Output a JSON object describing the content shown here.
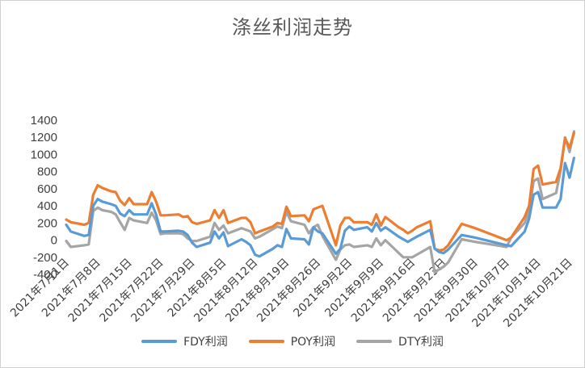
{
  "chart_data": {
    "type": "line",
    "title": "涤丝利润走势",
    "ylim": [
      -400,
      1400
    ],
    "yticks": [
      -400,
      -200,
      0,
      200,
      400,
      600,
      800,
      1000,
      1200,
      1400
    ],
    "x_tick_labels": [
      "2021年7月1日",
      "2021年7月8日",
      "2021年7月15日",
      "2021年7月22日",
      "2021年7月29日",
      "2021年8月5日",
      "2021年8月12日",
      "2021年8月19日",
      "2021年8月26日",
      "2021年9月2日",
      "2021年9月9日",
      "2021年9月16日",
      "2021年9月23日",
      "2021年9月30日",
      "2021年10月7日",
      "2021年10月14日",
      "2021年10月21日"
    ],
    "x_tick_days": [
      0,
      7,
      14,
      21,
      28,
      35,
      42,
      49,
      56,
      63,
      70,
      77,
      84,
      91,
      98,
      105,
      112
    ],
    "x_range_days": [
      0,
      114
    ],
    "grid": false,
    "legend_position": "bottom",
    "series": [
      {
        "name": "FDY利润",
        "color": "#5B9BD5",
        "points": [
          [
            0,
            180
          ],
          [
            1,
            100
          ],
          [
            4,
            50
          ],
          [
            5,
            60
          ],
          [
            6,
            400
          ],
          [
            7,
            480
          ],
          [
            8,
            450
          ],
          [
            10,
            420
          ],
          [
            11,
            400
          ],
          [
            12,
            310
          ],
          [
            13,
            280
          ],
          [
            14,
            350
          ],
          [
            15,
            300
          ],
          [
            18,
            300
          ],
          [
            19,
            430
          ],
          [
            20,
            300
          ],
          [
            21,
            100
          ],
          [
            22,
            100
          ],
          [
            25,
            110
          ],
          [
            26,
            100
          ],
          [
            27,
            60
          ],
          [
            28,
            -30
          ],
          [
            29,
            -80
          ],
          [
            32,
            -30
          ],
          [
            33,
            100
          ],
          [
            34,
            20
          ],
          [
            35,
            90
          ],
          [
            36,
            -70
          ],
          [
            39,
            10
          ],
          [
            40,
            -20
          ],
          [
            41,
            -60
          ],
          [
            42,
            -170
          ],
          [
            43,
            -190
          ],
          [
            46,
            -100
          ],
          [
            47,
            -60
          ],
          [
            48,
            -80
          ],
          [
            49,
            130
          ],
          [
            50,
            20
          ],
          [
            53,
            10
          ],
          [
            54,
            -50
          ],
          [
            55,
            150
          ],
          [
            56,
            100
          ],
          [
            57,
            80
          ],
          [
            60,
            -160
          ],
          [
            61,
            -100
          ],
          [
            62,
            110
          ],
          [
            63,
            160
          ],
          [
            64,
            120
          ],
          [
            67,
            150
          ],
          [
            68,
            100
          ],
          [
            69,
            200
          ],
          [
            70,
            110
          ],
          [
            71,
            150
          ],
          [
            74,
            40
          ],
          [
            75,
            10
          ],
          [
            76,
            -20
          ],
          [
            77,
            10
          ],
          [
            78,
            40
          ],
          [
            81,
            120
          ],
          [
            82,
            -100
          ],
          [
            83,
            -140
          ],
          [
            84,
            -150
          ],
          [
            85,
            -110
          ],
          [
            88,
            60
          ],
          [
            91,
            30
          ],
          [
            98,
            -60
          ],
          [
            99,
            -70
          ],
          [
            102,
            100
          ],
          [
            103,
            250
          ],
          [
            104,
            530
          ],
          [
            105,
            560
          ],
          [
            106,
            380
          ],
          [
            109,
            380
          ],
          [
            110,
            480
          ],
          [
            111,
            900
          ],
          [
            112,
            730
          ],
          [
            113,
            960
          ]
        ]
      },
      {
        "name": "POY利润",
        "color": "#ED7D31",
        "points": [
          [
            0,
            240
          ],
          [
            1,
            210
          ],
          [
            4,
            180
          ],
          [
            5,
            200
          ],
          [
            6,
            530
          ],
          [
            7,
            640
          ],
          [
            8,
            610
          ],
          [
            10,
            570
          ],
          [
            11,
            560
          ],
          [
            12,
            460
          ],
          [
            13,
            410
          ],
          [
            14,
            490
          ],
          [
            15,
            420
          ],
          [
            18,
            420
          ],
          [
            19,
            560
          ],
          [
            20,
            450
          ],
          [
            21,
            290
          ],
          [
            22,
            290
          ],
          [
            25,
            300
          ],
          [
            26,
            270
          ],
          [
            27,
            280
          ],
          [
            28,
            210
          ],
          [
            29,
            190
          ],
          [
            32,
            230
          ],
          [
            33,
            350
          ],
          [
            34,
            260
          ],
          [
            35,
            350
          ],
          [
            36,
            200
          ],
          [
            39,
            260
          ],
          [
            40,
            260
          ],
          [
            41,
            210
          ],
          [
            42,
            80
          ],
          [
            43,
            100
          ],
          [
            46,
            160
          ],
          [
            47,
            200
          ],
          [
            48,
            190
          ],
          [
            49,
            390
          ],
          [
            50,
            280
          ],
          [
            53,
            290
          ],
          [
            54,
            220
          ],
          [
            55,
            360
          ],
          [
            56,
            380
          ],
          [
            57,
            400
          ],
          [
            60,
            -60
          ],
          [
            61,
            170
          ],
          [
            62,
            260
          ],
          [
            63,
            260
          ],
          [
            64,
            210
          ],
          [
            67,
            210
          ],
          [
            68,
            180
          ],
          [
            69,
            300
          ],
          [
            70,
            170
          ],
          [
            71,
            270
          ],
          [
            74,
            150
          ],
          [
            75,
            120
          ],
          [
            76,
            80
          ],
          [
            77,
            110
          ],
          [
            78,
            150
          ],
          [
            81,
            220
          ],
          [
            82,
            -100
          ],
          [
            83,
            -120
          ],
          [
            84,
            -110
          ],
          [
            85,
            -60
          ],
          [
            88,
            190
          ],
          [
            91,
            140
          ],
          [
            98,
            0
          ],
          [
            99,
            30
          ],
          [
            102,
            270
          ],
          [
            103,
            400
          ],
          [
            104,
            830
          ],
          [
            105,
            870
          ],
          [
            106,
            650
          ],
          [
            109,
            680
          ],
          [
            110,
            840
          ],
          [
            111,
            1190
          ],
          [
            112,
            1080
          ],
          [
            113,
            1250
          ]
        ]
      },
      {
        "name": "DTY利润",
        "color": "#A5A5A5",
        "points": [
          [
            0,
            -10
          ],
          [
            1,
            -80
          ],
          [
            4,
            -60
          ],
          [
            5,
            -50
          ],
          [
            6,
            340
          ],
          [
            7,
            380
          ],
          [
            8,
            350
          ],
          [
            10,
            330
          ],
          [
            11,
            300
          ],
          [
            12,
            210
          ],
          [
            13,
            120
          ],
          [
            14,
            260
          ],
          [
            15,
            230
          ],
          [
            18,
            200
          ],
          [
            19,
            320
          ],
          [
            20,
            230
          ],
          [
            21,
            70
          ],
          [
            22,
            80
          ],
          [
            25,
            80
          ],
          [
            26,
            70
          ],
          [
            27,
            20
          ],
          [
            28,
            -10
          ],
          [
            29,
            -10
          ],
          [
            32,
            40
          ],
          [
            33,
            200
          ],
          [
            34,
            120
          ],
          [
            35,
            170
          ],
          [
            36,
            80
          ],
          [
            39,
            140
          ],
          [
            40,
            120
          ],
          [
            41,
            100
          ],
          [
            42,
            20
          ],
          [
            43,
            40
          ],
          [
            46,
            130
          ],
          [
            47,
            160
          ],
          [
            48,
            140
          ],
          [
            49,
            330
          ],
          [
            50,
            220
          ],
          [
            53,
            180
          ],
          [
            54,
            80
          ],
          [
            55,
            150
          ],
          [
            56,
            180
          ],
          [
            57,
            50
          ],
          [
            60,
            -230
          ],
          [
            61,
            -110
          ],
          [
            62,
            -60
          ],
          [
            63,
            -50
          ],
          [
            64,
            -80
          ],
          [
            67,
            -60
          ],
          [
            68,
            -80
          ],
          [
            69,
            20
          ],
          [
            70,
            -60
          ],
          [
            71,
            0
          ],
          [
            74,
            -150
          ],
          [
            75,
            -200
          ],
          [
            76,
            -200
          ],
          [
            77,
            -200
          ],
          [
            78,
            -170
          ],
          [
            81,
            -80
          ],
          [
            82,
            -380
          ],
          [
            83,
            -340
          ],
          [
            84,
            -310
          ],
          [
            85,
            -260
          ],
          [
            88,
            10
          ],
          [
            91,
            -20
          ],
          [
            98,
            -80
          ],
          [
            99,
            30
          ],
          [
            102,
            200
          ],
          [
            103,
            330
          ],
          [
            104,
            690
          ],
          [
            105,
            720
          ],
          [
            106,
            480
          ],
          [
            109,
            550
          ],
          [
            110,
            810
          ],
          [
            111,
            1200
          ],
          [
            112,
            1030
          ],
          [
            113,
            1270
          ]
        ]
      }
    ]
  }
}
